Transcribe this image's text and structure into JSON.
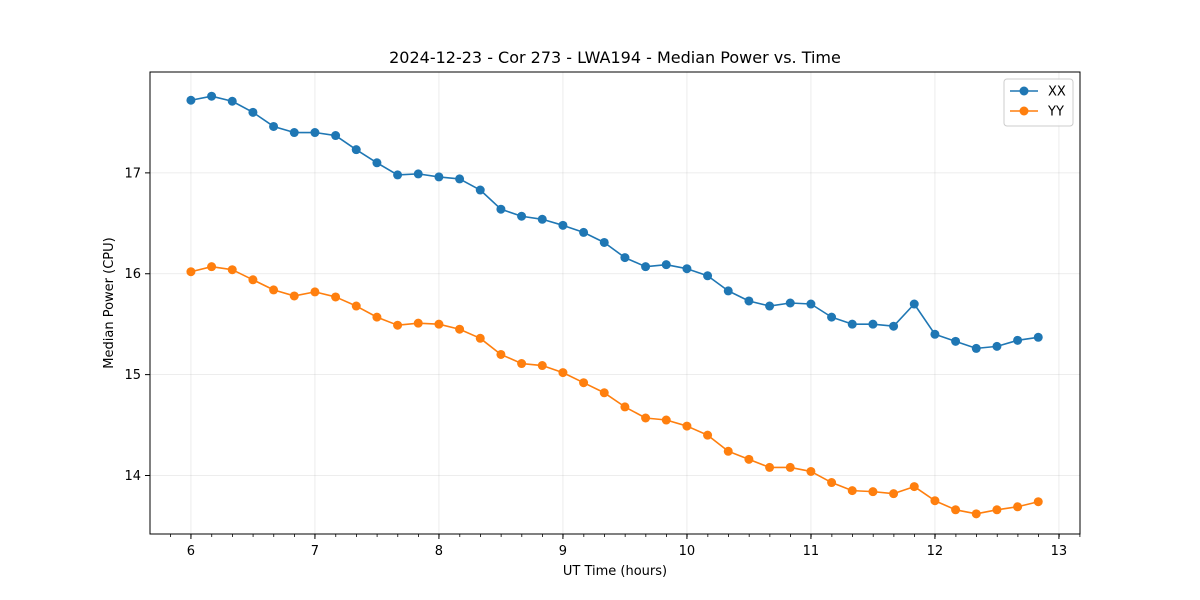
{
  "chart_data": {
    "type": "line",
    "title": "2024-12-23 - Cor 273 - LWA194 - Median Power vs. Time",
    "xlabel": "UT Time (hours)",
    "ylabel": "Median Power (CPU)",
    "xlim": [
      5.67,
      13.17
    ],
    "ylim": [
      13.42,
      18.0
    ],
    "xticks": [
      6,
      7,
      8,
      9,
      10,
      11,
      12,
      13
    ],
    "yticks": [
      14,
      15,
      16,
      17
    ],
    "x_minor_step": 0.1667,
    "grid": true,
    "legend_position": "top-right",
    "x": [
      6.0,
      6.1667,
      6.3333,
      6.5,
      6.6667,
      6.8333,
      7.0,
      7.1667,
      7.3333,
      7.5,
      7.6667,
      7.8333,
      8.0,
      8.1667,
      8.3333,
      8.5,
      8.6667,
      8.8333,
      9.0,
      9.1667,
      9.3333,
      9.5,
      9.6667,
      9.8333,
      10.0,
      10.1667,
      10.3333,
      10.5,
      10.6667,
      10.8333,
      11.0,
      11.1667,
      11.3333,
      11.5,
      11.6667,
      11.8333,
      12.0,
      12.1667,
      12.3333,
      12.5,
      12.6667,
      12.8333
    ],
    "series": [
      {
        "name": "XX",
        "color": "#1f77b4",
        "values": [
          17.72,
          17.76,
          17.71,
          17.6,
          17.46,
          17.4,
          17.4,
          17.37,
          17.23,
          17.1,
          16.98,
          16.99,
          16.96,
          16.94,
          16.83,
          16.64,
          16.57,
          16.54,
          16.48,
          16.41,
          16.31,
          16.16,
          16.07,
          16.09,
          16.05,
          15.98,
          15.83,
          15.73,
          15.68,
          15.71,
          15.7,
          15.57,
          15.5,
          15.5,
          15.48,
          15.7,
          15.4,
          15.33,
          15.26,
          15.28,
          15.34,
          15.37
        ]
      },
      {
        "name": "YY",
        "color": "#ff7f0e",
        "values": [
          16.02,
          16.07,
          16.04,
          15.94,
          15.84,
          15.78,
          15.82,
          15.77,
          15.68,
          15.57,
          15.49,
          15.51,
          15.5,
          15.45,
          15.36,
          15.2,
          15.11,
          15.09,
          15.02,
          14.92,
          14.82,
          14.68,
          14.57,
          14.55,
          14.49,
          14.4,
          14.24,
          14.16,
          14.08,
          14.08,
          14.04,
          13.93,
          13.85,
          13.84,
          13.82,
          13.89,
          13.75,
          13.66,
          13.62,
          13.66,
          13.69,
          13.74
        ]
      }
    ]
  }
}
